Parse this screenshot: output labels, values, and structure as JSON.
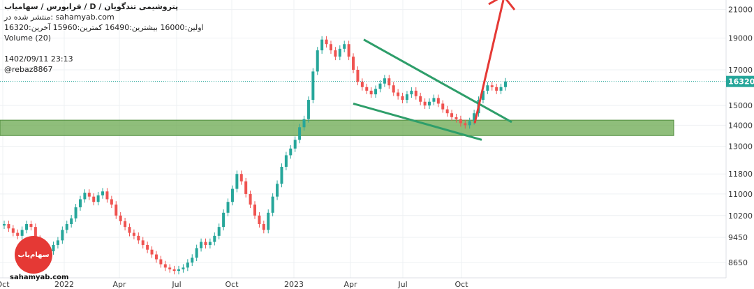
{
  "header": {
    "title": "پتروشیمی تندگویان / D / فرابورس / سهامیاب",
    "published_on": "منتشر شده در: sahamyab.com",
    "ohlc": "اولین:16000  بیشترین:16490  کمترین:15960  آخرین:16320",
    "volume": "Volume (20)",
    "timestamp": "1402/09/11 23:13",
    "author": "@rebaz8867"
  },
  "logo_text": "سهام‌یاب",
  "site": "sahamyab.com",
  "colors": {
    "up": "#26a69a",
    "down": "#ef5350",
    "support_zone": "#6aa84f",
    "trendline": "#2e9e6a",
    "arrow": "#e53935",
    "last_price": "#26a69a"
  },
  "chart_data": {
    "type": "candlestick",
    "x_ticks": [
      "Oct",
      "2022",
      "Apr",
      "Jul",
      "Oct",
      "2023",
      "Apr",
      "Jul",
      "Oct"
    ],
    "y_ticks": [
      8650,
      9450,
      10200,
      11000,
      11800,
      13000,
      14000,
      15000,
      17000,
      19000,
      21000
    ],
    "y_scale": "log",
    "ylim": [
      8200,
      21500
    ],
    "last_price": 16320,
    "last_price_label": "16320",
    "support_zone": [
      13500,
      14250
    ],
    "closes": [
      9900,
      9750,
      9600,
      9500,
      9700,
      9900,
      9800,
      9400,
      9100,
      8950,
      9000,
      9200,
      9350,
      9700,
      9900,
      10100,
      10500,
      10800,
      11050,
      10900,
      10700,
      10950,
      11100,
      10800,
      10600,
      10200,
      10000,
      9800,
      9600,
      9500,
      9350,
      9200,
      9050,
      8900,
      8750,
      8600,
      8500,
      8450,
      8400,
      8450,
      8500,
      8650,
      8800,
      9100,
      9300,
      9200,
      9300,
      9500,
      9800,
      10300,
      10700,
      11200,
      11800,
      11500,
      11000,
      10600,
      10200,
      9900,
      9700,
      10300,
      10900,
      11400,
      12100,
      12600,
      12900,
      13300,
      13900,
      14300,
      15300,
      16900,
      18200,
      18900,
      18600,
      18200,
      17800,
      18300,
      18600,
      17800,
      17000,
      16300,
      16000,
      15800,
      15600,
      15900,
      16200,
      16500,
      16100,
      15700,
      15500,
      15300,
      15600,
      15800,
      15500,
      15200,
      15000,
      15200,
      15400,
      15100,
      14800,
      14600,
      14400,
      14300,
      14100,
      14000,
      14200,
      14600,
      15300,
      15800,
      16100,
      16000,
      15800,
      16000,
      16320
    ],
    "annotations": {
      "upper_trendline": [
        [
          "2023-04",
          18900
        ],
        [
          "2023-11",
          14150
        ]
      ],
      "lower_trendline": [
        [
          "2023-04",
          15100
        ],
        [
          "2023-11",
          13300
        ]
      ],
      "arrow": [
        [
          "2023-10",
          14100
        ],
        [
          "2023-11",
          21500
        ]
      ]
    }
  }
}
